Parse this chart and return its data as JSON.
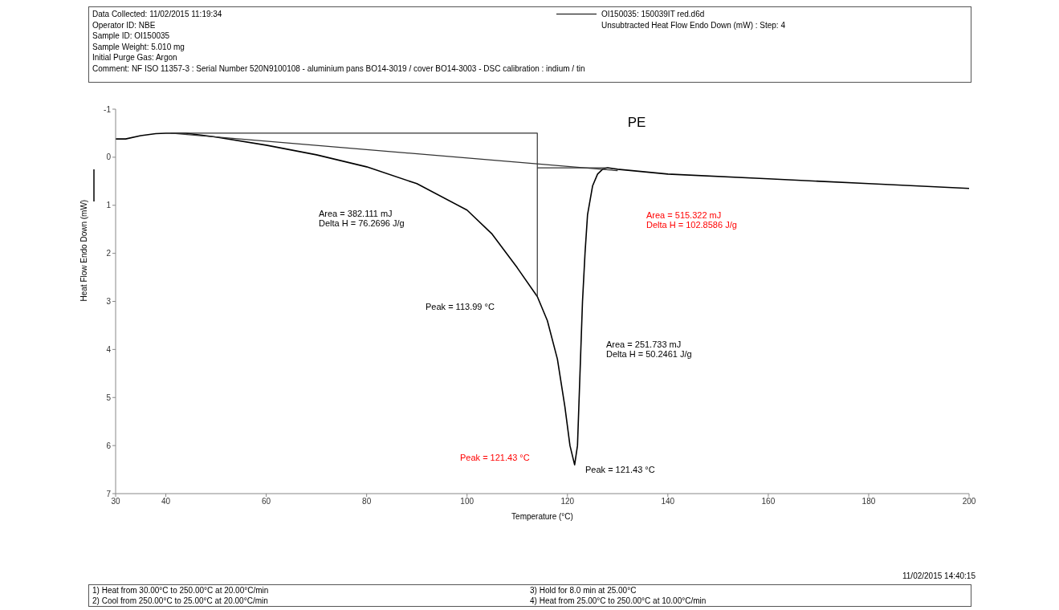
{
  "chart_data": {
    "type": "line",
    "title": "PE",
    "xlabel": "Temperature (°C)",
    "ylabel": "Heat Flow Endo Down (mW)",
    "xlim": [
      30,
      200
    ],
    "xticks": [
      30,
      40,
      60,
      80,
      100,
      120,
      140,
      160,
      180,
      200
    ],
    "ylim": [
      7,
      -1
    ],
    "yticks": [
      -1,
      0,
      1,
      2,
      3,
      4,
      5,
      6,
      7
    ],
    "grid": false,
    "legend": "top right",
    "marker": "none",
    "line_style": "solid",
    "series": [
      {
        "name": "OI150035: 150039IT red.d6d",
        "color": "#000000",
        "x": [
          30,
          32,
          35,
          38,
          40,
          44,
          50,
          60,
          70,
          80,
          90,
          100,
          105,
          110,
          114,
          116,
          118,
          119.5,
          120.5,
          121.43,
          122,
          122.5,
          123,
          123.5,
          124,
          125,
          126,
          127,
          128,
          130,
          140,
          160,
          180,
          200
        ],
        "values": [
          -0.38,
          -0.38,
          -0.45,
          -0.49,
          -0.5,
          -0.5,
          -0.42,
          -0.25,
          -0.05,
          0.2,
          0.55,
          1.1,
          1.6,
          2.3,
          2.9,
          3.4,
          4.2,
          5.2,
          6.0,
          6.4,
          6.0,
          4.5,
          3.0,
          2.0,
          1.2,
          0.6,
          0.35,
          0.25,
          0.22,
          0.25,
          0.35,
          0.45,
          0.55,
          0.65
        ]
      },
      {
        "color": "#333333",
        "x": [
          41,
          130
        ],
        "values": [
          -0.5,
          0.28
        ]
      },
      {
        "color": "#333333",
        "x": [
          41,
          114,
          114
        ],
        "values": [
          -0.5,
          -0.5,
          2.9
        ]
      },
      {
        "color": "#333333",
        "x": [
          114,
          128
        ],
        "values": [
          0.22,
          0.22
        ]
      }
    ],
    "annotations": [
      "Data Collected: 11/02/2015 11:19:34",
      "Operator ID: NBE",
      "Sample ID: OI150035",
      "Sample Weight: 5.010 mg",
      "Initial Purge Gas: Argon",
      "Comment: NF ISO 11357-3 : Serial Number 520N9100108 - aluminium pans BO14-3019 / cover BO14-3003 - DSC calibration : indium / tin",
      "Unsubtracted Heat Flow Endo Down (mW) : Step: 4",
      "Area = 382.111 mJ\nDelta H = 76.2696 J/g",
      "Peak = 113.99 °C",
      "Area = 515.322 mJ\nDelta H = 102.8586 J/g",
      "Area = 251.733 mJ\nDelta H = 50.2461 J/g",
      "Peak = 121.43 °C",
      "Peak = 121.43 °C",
      "11/02/2015 14:40:15",
      "1)  Heat from 30.00°C to 250.00°C at 20.00°C/min",
      "2)  Cool from 250.00°C to 25.00°C at 20.00°C/min",
      "3)  Hold for 8.0 min at 25.00°C",
      "4)  Heat from 25.00°C to 250.00°C at 10.00°C/min"
    ]
  }
}
